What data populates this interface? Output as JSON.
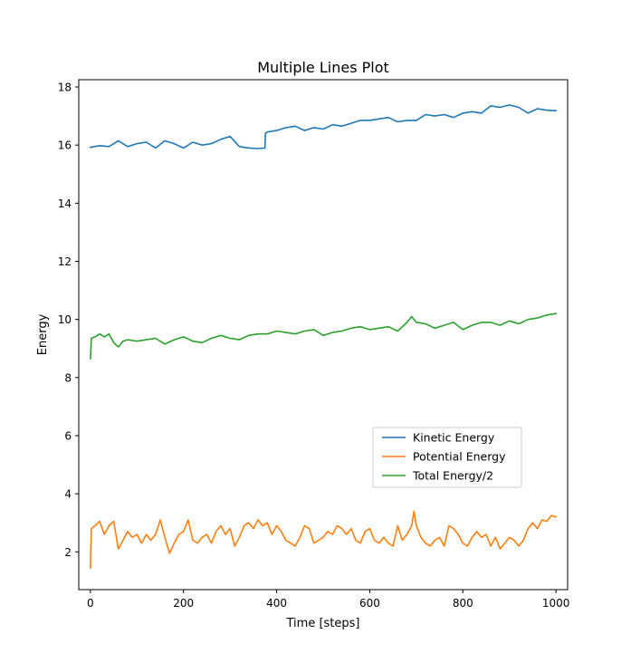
{
  "chart_data": {
    "type": "line",
    "title": "Multiple Lines Plot",
    "xlabel": "Time [steps]",
    "ylabel": "Energy",
    "xlim": [
      -25,
      1025
    ],
    "ylim": [
      0.7,
      18.25
    ],
    "xticks": [
      0,
      200,
      400,
      600,
      800,
      1000
    ],
    "yticks": [
      2,
      4,
      6,
      8,
      10,
      12,
      14,
      16,
      18
    ],
    "grid": false,
    "legend_position": "lower-right",
    "series": [
      {
        "name": "Kinetic Energy",
        "color": "#1f77b4",
        "x": [
          0,
          20,
          40,
          60,
          80,
          100,
          120,
          140,
          160,
          180,
          200,
          220,
          240,
          260,
          280,
          300,
          320,
          340,
          360,
          375,
          376,
          380,
          400,
          420,
          440,
          460,
          480,
          500,
          520,
          540,
          560,
          580,
          600,
          620,
          640,
          660,
          680,
          700,
          720,
          740,
          760,
          780,
          800,
          820,
          840,
          860,
          880,
          900,
          920,
          940,
          960,
          980,
          1000
        ],
        "y": [
          15.92,
          15.98,
          15.95,
          16.15,
          15.95,
          16.05,
          16.1,
          15.9,
          16.15,
          16.05,
          15.9,
          16.1,
          16.0,
          16.05,
          16.2,
          16.3,
          15.95,
          15.9,
          15.88,
          15.9,
          16.4,
          16.45,
          16.5,
          16.6,
          16.65,
          16.5,
          16.6,
          16.55,
          16.7,
          16.65,
          16.75,
          16.85,
          16.85,
          16.9,
          16.95,
          16.8,
          16.85,
          16.85,
          17.05,
          17.0,
          17.05,
          16.95,
          17.1,
          17.15,
          17.1,
          17.35,
          17.3,
          17.38,
          17.3,
          17.1,
          17.25,
          17.2,
          17.18
        ]
      },
      {
        "name": "Potential Energy",
        "color": "#ff7f0e",
        "x": [
          0,
          2,
          10,
          20,
          30,
          40,
          50,
          60,
          70,
          80,
          90,
          100,
          110,
          120,
          130,
          140,
          150,
          160,
          170,
          180,
          190,
          200,
          210,
          220,
          230,
          240,
          250,
          260,
          270,
          280,
          290,
          300,
          310,
          320,
          330,
          340,
          350,
          360,
          370,
          380,
          390,
          400,
          410,
          420,
          430,
          440,
          450,
          460,
          470,
          480,
          490,
          500,
          510,
          520,
          530,
          540,
          550,
          560,
          570,
          580,
          590,
          600,
          610,
          620,
          630,
          640,
          650,
          660,
          670,
          680,
          690,
          695,
          700,
          710,
          720,
          730,
          740,
          750,
          760,
          770,
          780,
          790,
          800,
          810,
          820,
          830,
          840,
          850,
          860,
          870,
          880,
          890,
          900,
          910,
          920,
          930,
          940,
          950,
          960,
          970,
          980,
          990,
          1000
        ],
        "y": [
          1.45,
          2.8,
          2.9,
          3.05,
          2.6,
          2.9,
          3.05,
          2.1,
          2.4,
          2.7,
          2.5,
          2.6,
          2.3,
          2.6,
          2.4,
          2.6,
          3.1,
          2.5,
          1.95,
          2.3,
          2.6,
          2.7,
          3.1,
          2.4,
          2.3,
          2.5,
          2.6,
          2.3,
          2.7,
          2.9,
          2.6,
          2.8,
          2.2,
          2.5,
          2.9,
          3.0,
          2.8,
          3.1,
          2.9,
          3.0,
          2.6,
          2.9,
          2.7,
          2.4,
          2.3,
          2.2,
          2.5,
          2.9,
          2.8,
          2.3,
          2.4,
          2.5,
          2.7,
          2.6,
          2.9,
          2.8,
          2.6,
          2.8,
          2.4,
          2.3,
          2.7,
          2.8,
          2.4,
          2.3,
          2.5,
          2.3,
          2.2,
          2.9,
          2.4,
          2.6,
          2.9,
          3.4,
          2.9,
          2.5,
          2.3,
          2.2,
          2.4,
          2.5,
          2.2,
          2.9,
          2.8,
          2.6,
          2.3,
          2.2,
          2.5,
          2.7,
          2.5,
          2.6,
          2.2,
          2.5,
          2.1,
          2.3,
          2.5,
          2.4,
          2.2,
          2.4,
          2.8,
          3.0,
          2.8,
          3.1,
          3.05,
          3.25,
          3.2
        ]
      },
      {
        "name": "Total Energy/2",
        "color": "#2ca02c",
        "x": [
          0,
          2,
          10,
          20,
          30,
          40,
          50,
          60,
          70,
          80,
          100,
          120,
          140,
          160,
          180,
          200,
          220,
          240,
          260,
          280,
          300,
          320,
          340,
          360,
          380,
          400,
          420,
          440,
          460,
          480,
          500,
          520,
          540,
          560,
          580,
          600,
          620,
          640,
          660,
          680,
          690,
          700,
          720,
          740,
          760,
          780,
          800,
          820,
          840,
          860,
          880,
          900,
          920,
          940,
          960,
          980,
          1000
        ],
        "y": [
          8.65,
          9.35,
          9.4,
          9.5,
          9.4,
          9.5,
          9.2,
          9.05,
          9.25,
          9.3,
          9.25,
          9.3,
          9.35,
          9.15,
          9.3,
          9.4,
          9.25,
          9.2,
          9.35,
          9.45,
          9.35,
          9.3,
          9.45,
          9.5,
          9.5,
          9.6,
          9.55,
          9.5,
          9.6,
          9.65,
          9.45,
          9.55,
          9.6,
          9.7,
          9.75,
          9.65,
          9.7,
          9.75,
          9.6,
          9.9,
          10.1,
          9.9,
          9.85,
          9.7,
          9.8,
          9.9,
          9.65,
          9.8,
          9.9,
          9.9,
          9.8,
          9.95,
          9.85,
          10.0,
          10.05,
          10.15,
          10.2
        ]
      }
    ]
  }
}
